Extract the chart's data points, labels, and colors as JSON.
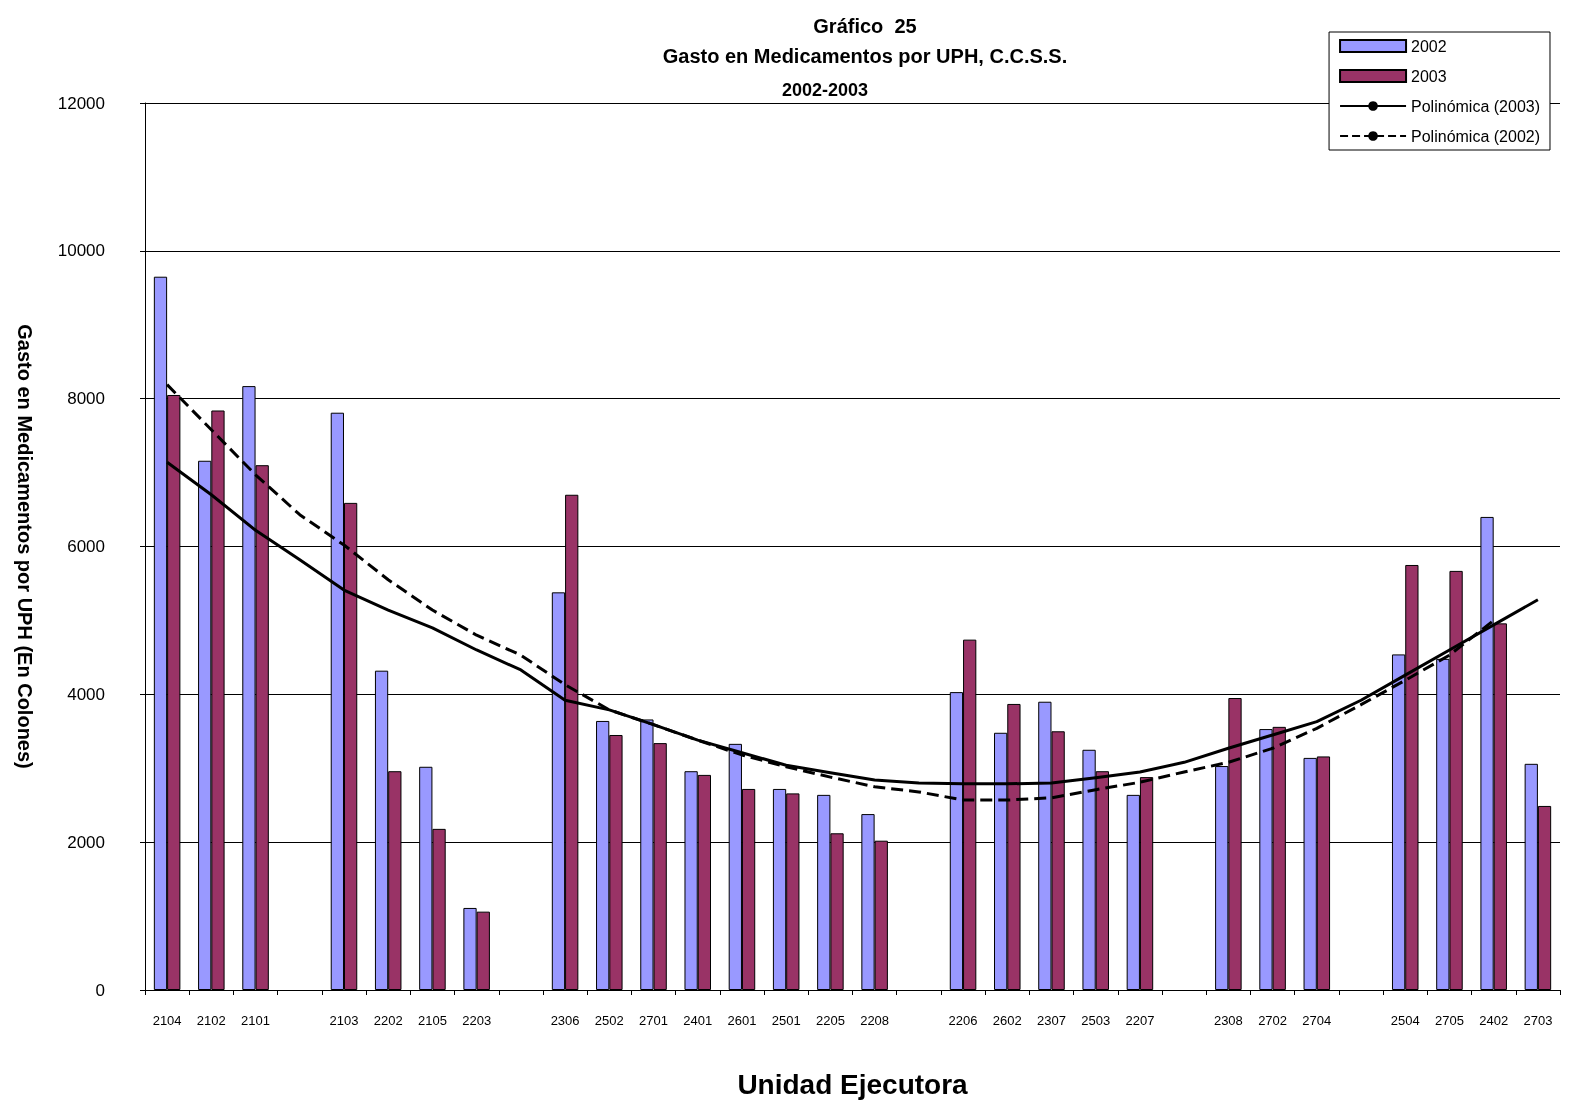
{
  "chart_data": {
    "type": "bar",
    "title": "Gráfico  25\nGasto en Medicamentos por UPH, C.C.S.S.",
    "subtitle": "2002-2003",
    "xlabel": "Unidad Ejecutora",
    "ylabel": "Gasto en Medicamentos por UPH (En Colones)",
    "categories": [
      "2104",
      "2102",
      "2101",
      null,
      "2103",
      "2202",
      "2105",
      "2203",
      null,
      "2306",
      "2502",
      "2701",
      "2401",
      "2601",
      "2501",
      "2205",
      "2208",
      null,
      "2206",
      "2602",
      "2307",
      "2503",
      "2207",
      null,
      "2308",
      "2702",
      "2704",
      null,
      "2504",
      "2705",
      "2402",
      "2703"
    ],
    "series": [
      {
        "name": "2002",
        "color": "#9999ff",
        "values": [
          9650,
          7160,
          8170,
          null,
          7810,
          4320,
          3020,
          1110,
          null,
          5380,
          3640,
          3660,
          2960,
          3330,
          2720,
          2640,
          2380,
          null,
          4030,
          3480,
          3900,
          3250,
          2640,
          null,
          3030,
          3530,
          3140,
          null,
          4540,
          4480,
          6400,
          3060
        ]
      },
      {
        "name": "2003",
        "color": "#993366",
        "values": [
          8050,
          7840,
          7100,
          null,
          6590,
          2960,
          2180,
          1060,
          null,
          6700,
          3450,
          3340,
          2910,
          2720,
          2660,
          2120,
          2020,
          null,
          4740,
          3870,
          3500,
          2960,
          2880,
          null,
          3950,
          3560,
          3160,
          null,
          5750,
          5670,
          4960,
          2490
        ]
      },
      {
        "name": "Polinómica (2003)",
        "type": "line",
        "color": "#000000",
        "line_style": "solid",
        "values": [
          7140,
          6700,
          6220,
          5820,
          5410,
          5140,
          4900,
          4600,
          4330,
          3920,
          3790,
          3590,
          3380,
          3210,
          3040,
          2940,
          2840,
          2800,
          2790,
          2790,
          2800,
          2870,
          2950,
          3080,
          3270,
          3450,
          3630,
          3920,
          4260,
          4600,
          4940,
          5280
        ]
      },
      {
        "name": "Polinómica (2002)",
        "type": "line",
        "color": "#000000",
        "line_style": "dashed",
        "values": [
          8190,
          7580,
          6970,
          6430,
          6020,
          5550,
          5140,
          4800,
          4530,
          4130,
          3790,
          3590,
          3380,
          3180,
          3020,
          2880,
          2750,
          2680,
          2570,
          2570,
          2600,
          2710,
          2810,
          2950,
          3080,
          3270,
          3540,
          3860,
          4190,
          4530,
          5000,
          null
        ]
      }
    ],
    "ylim": [
      0,
      12000
    ],
    "yticks": [
      {
        "value": 0,
        "label": "0"
      },
      {
        "value": 2000,
        "label": "2000"
      },
      {
        "value": 4000,
        "label": "4000"
      },
      {
        "value": 6000,
        "label": "6000"
      },
      {
        "value": 8000,
        "label": "8000"
      },
      {
        "value": 10000,
        "label": "10000"
      },
      {
        "value": 12000,
        "label": "12000"
      }
    ],
    "grid": "y",
    "legend": "top right",
    "marker": "none"
  }
}
